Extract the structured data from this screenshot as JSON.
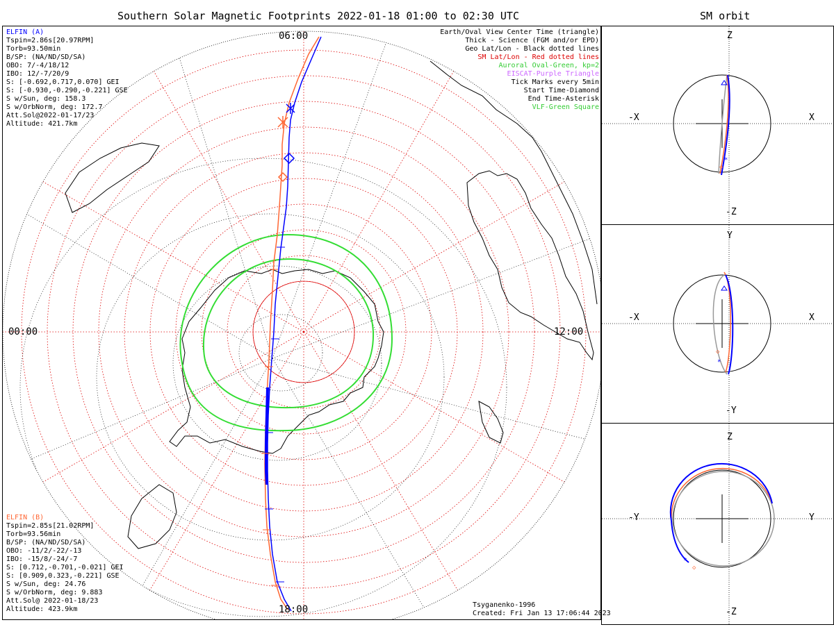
{
  "main_title": "Southern Solar Magnetic Footprints 2022-01-18 01:00 to 02:30 UTC",
  "orbit_title": "SM orbit",
  "colors": {
    "elfin_a": "#0000ff",
    "elfin_b": "#ff6633",
    "sm_grid": "#dd0000",
    "oval": "#33dd33",
    "orbit_gray": "#999999"
  },
  "clock": {
    "top": "06:00",
    "left": "00:00",
    "right": "12:00",
    "bottom": "18:00"
  },
  "legend": [
    {
      "text": "Earth/Oval View Center Time (triangle)",
      "color": "#000000"
    },
    {
      "text": "Thick - Science (FGM and/or EPD)",
      "color": "#000000"
    },
    {
      "text": "Geo Lat/Lon - Black dotted lines",
      "color": "#000000"
    },
    {
      "text": "SM Lat/Lon - Red dotted lines",
      "color": "#dd0000"
    },
    {
      "text": "Auroral Oval-Green, kp=2",
      "color": "#33cc33"
    },
    {
      "text": "EISCAT-Purple Triangle",
      "color": "#cc66ff"
    },
    {
      "text": "Tick Marks every 5min",
      "color": "#000000"
    },
    {
      "text": "Start Time-Diamond",
      "color": "#000000"
    },
    {
      "text": "End Time-Asterisk",
      "color": "#000000"
    },
    {
      "text": "VLF-Green Square",
      "color": "#33cc33"
    }
  ],
  "elfin_a": {
    "name": "ELFIN (A)",
    "lines": [
      "Tspin=2.86s[20.97RPM]",
      "Torb=93.50min",
      "B/SP: (NA/ND/SD/SA)",
      "OBO: 7/-4/18/12",
      "IBO: 12/-7/20/9",
      "S: [-0.692,0.717,0.070] GEI",
      "S: [-0.930,-0.290,-0.221] GSE",
      "S w/Sun, deg: 158.3",
      "S w/OrbNorm, deg: 172.7",
      "Att.Sol@2022-01-17/23",
      "Altitude: 421.7km"
    ]
  },
  "elfin_b": {
    "name": "ELFIN (B)",
    "lines": [
      "Tspin=2.85s[21.02RPM]",
      "Torb=93.56min",
      "B/SP: (NA/ND/SD/SA)",
      "OBO: -11/2/-22/-13",
      "IBO: -15/8/-24/-7",
      "S: [0.712,-0.701,-0.021] GEI",
      "S: [0.909,0.323,-0.221] GSE",
      "S w/Sun, deg: 24.76",
      "S w/OrbNorm, deg: 9.883",
      "Att.Sol@ 2022-01-18/23",
      "Altitude: 423.9km"
    ]
  },
  "footer": {
    "model": "Tsyganenko-1996",
    "created": "Created: Fri Jan 13 17:06:44 2023"
  },
  "orbit_panels": [
    {
      "top": "Z",
      "bottom": "-Z",
      "left": "-X",
      "right": "X"
    },
    {
      "top": "Y",
      "bottom": "-Y",
      "left": "-X",
      "right": "X"
    },
    {
      "top": "Z",
      "bottom": "-Z",
      "left": "-Y",
      "right": "Y"
    }
  ]
}
